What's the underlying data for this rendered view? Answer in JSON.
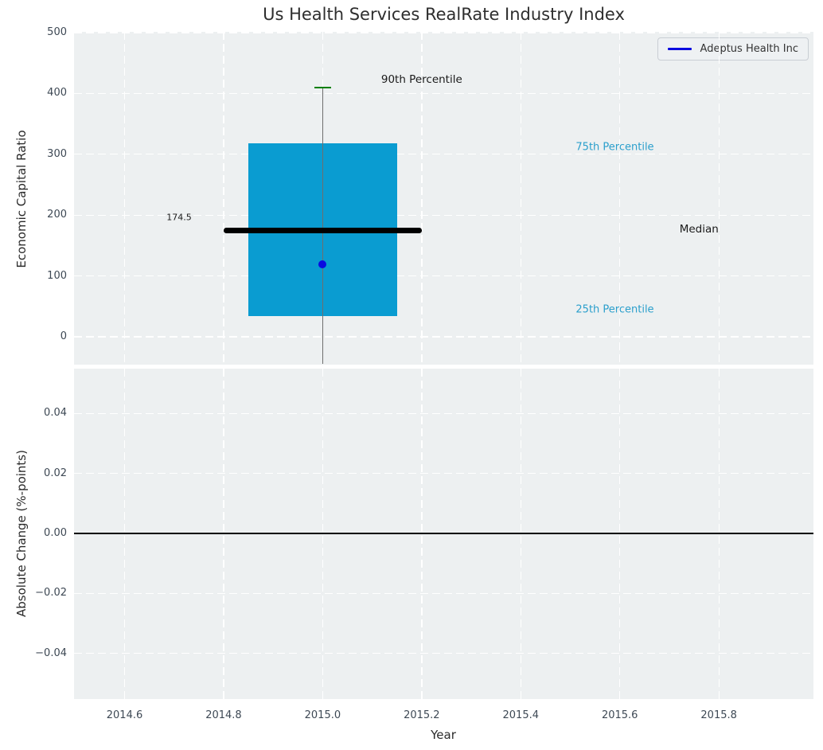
{
  "title": "Us Health Services RealRate Industry Index",
  "colors": {
    "axes_background": "#edf0f1",
    "grid": "#ffffff",
    "box_fill": "#0a9cd1",
    "median_line": "#000000",
    "whisker": "#6e6e6e",
    "whisker_cap": "#008000",
    "company_point": "#0a0ae0",
    "zero_line": "#000000",
    "percentile_text": "#2b9fcc",
    "annotation_text": "#1a1a1a",
    "tick_text": "#3d4854"
  },
  "legend": {
    "label": "Adeptus Health Inc",
    "line_color": "#0a0ae0"
  },
  "x_axis": {
    "label": "Year",
    "ticks": [
      {
        "label": "2014.6",
        "value": 2014.6
      },
      {
        "label": "2014.8",
        "value": 2014.8
      },
      {
        "label": "2015.0",
        "value": 2015.0
      },
      {
        "label": "2015.2",
        "value": 2015.2
      },
      {
        "label": "2015.4",
        "value": 2015.4
      },
      {
        "label": "2015.6",
        "value": 2015.6
      },
      {
        "label": "2015.8",
        "value": 2015.8
      }
    ],
    "xlim": [
      2014.5,
      2015.99
    ]
  },
  "chart_data": [
    {
      "type": "boxplot",
      "title": "Us Health Services RealRate Industry Index",
      "ylabel": "Economic Capital Ratio",
      "ylim": [
        -48,
        501
      ],
      "grid": true,
      "yticks": [
        {
          "label": "0",
          "value": 0
        },
        {
          "label": "100",
          "value": 100
        },
        {
          "label": "200",
          "value": 200
        },
        {
          "label": "300",
          "value": 300
        },
        {
          "label": "400",
          "value": 400
        },
        {
          "label": "500",
          "value": 500
        }
      ],
      "box": {
        "x_center": 2015.0,
        "box_x_range": [
          2014.85,
          2015.15
        ],
        "median_x_range": [
          2014.8,
          2015.2
        ],
        "p25": 34,
        "median": 174.5,
        "p75": 318,
        "p90_cap": 410,
        "whisker_low_end": -45
      },
      "company_point": {
        "name": "Adeptus Health Inc",
        "x": 2015.0,
        "y": 119
      },
      "median_value_label": {
        "text": "174.5",
        "x": 2014.71,
        "y": 196,
        "size": 11
      },
      "annotations": [
        {
          "text": "90th Percentile",
          "x": 2015.2,
          "y": 423,
          "color_key": "annotation_text",
          "size": 13.5
        },
        {
          "text": "75th Percentile",
          "x": 2015.59,
          "y": 312,
          "color_key": "percentile_text",
          "size": 13
        },
        {
          "text": "Median",
          "x": 2015.76,
          "y": 177,
          "color_key": "annotation_text",
          "size": 13.5
        },
        {
          "text": "25th Percentile",
          "x": 2015.59,
          "y": 45,
          "color_key": "percentile_text",
          "size": 13
        }
      ],
      "legend_entries": [
        "Adeptus Health Inc"
      ]
    },
    {
      "type": "line",
      "ylabel": "Absolute Change (%-points)",
      "xlabel": "Year",
      "ylim": [
        -0.055,
        0.055
      ],
      "grid": true,
      "yticks": [
        {
          "label": "0.04",
          "value": 0.04
        },
        {
          "label": "0.02",
          "value": 0.02
        },
        {
          "label": "0.00",
          "value": 0.0
        },
        {
          "label": "−0.02",
          "value": -0.02
        },
        {
          "label": "−0.04",
          "value": -0.04
        }
      ],
      "zero_line": 0.0,
      "series": []
    }
  ]
}
